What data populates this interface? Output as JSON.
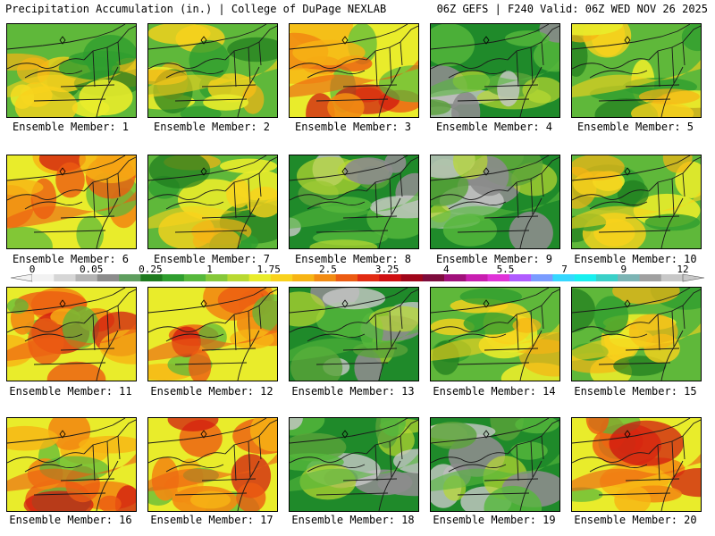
{
  "header": {
    "title": "Precipitation Accumulation (in.) | College of DuPage NEXLAB",
    "run_info": "06Z GEFS | F240 Valid: 06Z WED NOV 26 2025"
  },
  "colorbar": {
    "labels": [
      "0",
      "0.05",
      "0.25",
      "1",
      "1.75",
      "2.5",
      "3.25",
      "4",
      "5.5",
      "7",
      "9",
      "12"
    ],
    "colors": [
      "#f2f2f2",
      "#d6d6d6",
      "#b4b4b4",
      "#8c8c8c",
      "#5f9e5f",
      "#1e7a1e",
      "#2f9e2f",
      "#56b83c",
      "#86c83a",
      "#b9d932",
      "#e9ec2b",
      "#f9d21d",
      "#f7b414",
      "#f28b12",
      "#ec5b12",
      "#e22b12",
      "#cf0e10",
      "#a0061a",
      "#7d0c3c",
      "#a0107a",
      "#c81eb0",
      "#e033d8",
      "#b05cff",
      "#7a9cff",
      "#36d8ff",
      "#18f0f0",
      "#3ad0c8",
      "#7cb4b4",
      "#a0a0a0",
      "#c8c8c8"
    ]
  },
  "panels": [
    {
      "label": "Ensemble Member: 1",
      "tone": "mix"
    },
    {
      "label": "Ensemble Member: 2",
      "tone": "mix"
    },
    {
      "label": "Ensemble Member: 3",
      "tone": "wet"
    },
    {
      "label": "Ensemble Member: 4",
      "tone": "dry"
    },
    {
      "label": "Ensemble Member: 5",
      "tone": "mix"
    },
    {
      "label": "Ensemble Member: 6",
      "tone": "wet"
    },
    {
      "label": "Ensemble Member: 7",
      "tone": "mix"
    },
    {
      "label": "Ensemble Member: 8",
      "tone": "dry"
    },
    {
      "label": "Ensemble Member: 9",
      "tone": "dry"
    },
    {
      "label": "Ensemble Member: 10",
      "tone": "mix"
    },
    {
      "label": "Ensemble Member: 11",
      "tone": "wet"
    },
    {
      "label": "Ensemble Member: 12",
      "tone": "wet"
    },
    {
      "label": "Ensemble Member: 13",
      "tone": "dry"
    },
    {
      "label": "Ensemble Member: 14",
      "tone": "mix"
    },
    {
      "label": "Ensemble Member: 15",
      "tone": "mix"
    },
    {
      "label": "Ensemble Member: 16",
      "tone": "wet"
    },
    {
      "label": "Ensemble Member: 17",
      "tone": "wet"
    },
    {
      "label": "Ensemble Member: 18",
      "tone": "dry"
    },
    {
      "label": "Ensemble Member: 19",
      "tone": "dry"
    },
    {
      "label": "Ensemble Member: 20",
      "tone": "wet"
    }
  ]
}
